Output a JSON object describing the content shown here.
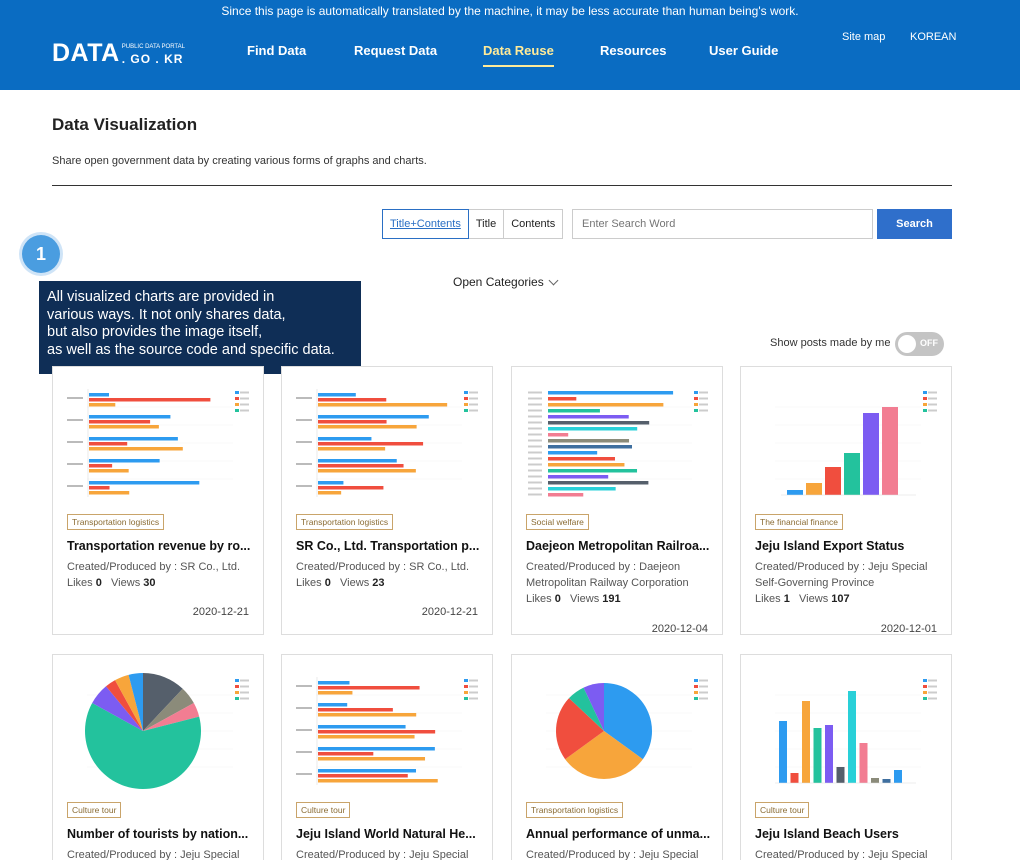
{
  "header": {
    "notice": "Since this page is automatically translated by the machine, it may be less accurate than human being's work.",
    "logo": {
      "main": "DATA",
      "small": "PUBLIC DATA PORTAL",
      "domain": ". GO . KR"
    },
    "nav": [
      {
        "label": "Find Data",
        "active": false
      },
      {
        "label": "Request Data",
        "active": false
      },
      {
        "label": "Data Reuse",
        "active": true
      },
      {
        "label": "Resources",
        "active": false
      },
      {
        "label": "User Guide",
        "active": false
      }
    ],
    "sitemap": "Site map",
    "language": "KOREAN"
  },
  "page": {
    "title": "Data Visualization",
    "description": "Share open government data by creating various forms of graphs and charts."
  },
  "search": {
    "scopes": [
      "Title+Contents",
      "Title",
      "Contents"
    ],
    "active_scope": "Title+Contents",
    "placeholder": "Enter Search Word",
    "button": "Search"
  },
  "categories_toggle": "Open Categories",
  "guide": {
    "step": "1",
    "lines": [
      "All visualized charts are provided in",
      "various ways. It not only shares data,",
      "but also provides the image itself,",
      "as well as the source code and specific data."
    ]
  },
  "my_posts": {
    "label": "Show posts made by me",
    "state": "OFF"
  },
  "labels": {
    "created_by": "Created/Produced by : ",
    "likes": "Likes",
    "views": "Views"
  },
  "cards": [
    {
      "category": "Transportation logistics",
      "title": "Transportation revenue by ro...",
      "producer": "SR Co., Ltd.",
      "likes": "0",
      "views": "30",
      "date": "2020-12-21",
      "chart": "hbar"
    },
    {
      "category": "Transportation logistics",
      "title": "SR Co., Ltd. Transportation p...",
      "producer": "SR Co., Ltd.",
      "likes": "0",
      "views": "23",
      "date": "2020-12-21",
      "chart": "hbar"
    },
    {
      "category": "Social welfare",
      "title": "Daejeon Metropolitan Railroa...",
      "producer": "Daejeon Metropolitan Railway Corporation",
      "likes": "0",
      "views": "191",
      "date": "2020-12-04",
      "chart": "hbar_dense"
    },
    {
      "category": "The financial finance",
      "title": "Jeju Island Export Status",
      "producer": "Jeju Special Self-Governing Province",
      "likes": "1",
      "views": "107",
      "date": "2020-12-01",
      "chart": "vbar_rising"
    },
    {
      "category": "Culture tour",
      "title": "Number of tourists by nation...",
      "producer": "Jeju Special",
      "chart": "pie_a"
    },
    {
      "category": "Culture tour",
      "title": "Jeju Island World Natural He...",
      "producer": "Jeju Special",
      "chart": "hbar_groups"
    },
    {
      "category": "Transportation logistics",
      "title": "Annual performance of unma...",
      "producer": "Jeju Special",
      "chart": "pie_b"
    },
    {
      "category": "Culture tour",
      "title": "Jeju Island Beach Users",
      "producer": "Jeju Special",
      "chart": "vbar_mixed"
    }
  ],
  "colors": {
    "header_bg": "#0a6cc2",
    "active_nav": "#ffeb99",
    "search_button": "#2f6fcb",
    "tooltip_bg": "#0f2e56",
    "tag_border": "#c9a46a"
  }
}
